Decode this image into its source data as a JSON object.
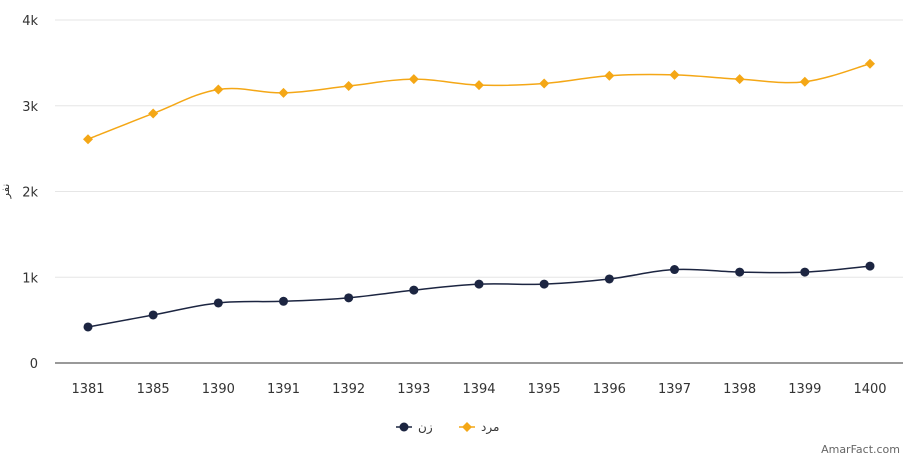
{
  "chart_data": {
    "type": "line",
    "title": "",
    "xlabel": "",
    "ylabel": "نفر",
    "ylim": [
      0,
      4000
    ],
    "yticks": [
      {
        "value": 0,
        "label": "0"
      },
      {
        "value": 1000,
        "label": "1k"
      },
      {
        "value": 2000,
        "label": "2k"
      },
      {
        "value": 3000,
        "label": "3k"
      },
      {
        "value": 4000,
        "label": "4k"
      }
    ],
    "categories": [
      "1381",
      "1385",
      "1390",
      "1391",
      "1392",
      "1393",
      "1394",
      "1395",
      "1396",
      "1397",
      "1398",
      "1399",
      "1400"
    ],
    "grid": true,
    "legend_position": "bottom-center",
    "series": [
      {
        "name": "زن",
        "color": "#1c2541",
        "marker": "circle",
        "values": [
          420,
          560,
          700,
          720,
          760,
          850,
          920,
          920,
          980,
          1090,
          1060,
          1060,
          1130
        ]
      },
      {
        "name": "مرد",
        "color": "#f4a716",
        "marker": "diamond",
        "values": [
          2610,
          2910,
          3190,
          3150,
          3230,
          3310,
          3240,
          3260,
          3350,
          3360,
          3310,
          3280,
          3490
        ]
      }
    ]
  },
  "credit": "AmarFact.com"
}
